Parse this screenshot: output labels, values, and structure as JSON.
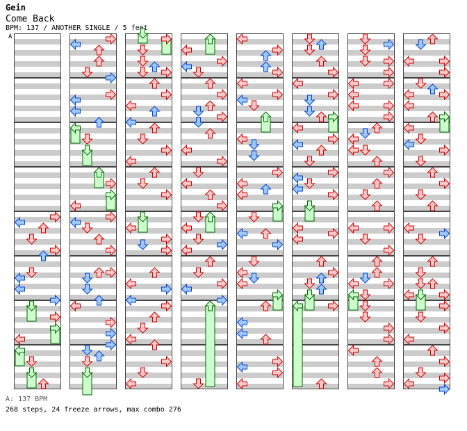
{
  "header": {
    "artist": "Gein",
    "title": "Come Back",
    "info": "BPM: 137 / ANOTHER SINGLE / 5 feet"
  },
  "segment_label": "A",
  "footer": {
    "bpm_line": "A: 137 BPM",
    "stats_line": "268 steps, 24 freeze arrows, max combo 276"
  },
  "colors": {
    "stripe": "#cccccc",
    "quarter_fill": "#ffc8c8",
    "quarter_stroke": "#cc0000",
    "eighth_fill": "#a0c8ff",
    "eighth_stroke": "#0044cc",
    "freeze_fill": "#ccffcc",
    "freeze_stroke": "#006600"
  },
  "chart_data": {
    "type": "step-chart",
    "columns": 8,
    "measures_per_column": 8,
    "lanes": [
      "left",
      "down",
      "up",
      "right"
    ],
    "note_types": {
      "q": "quarter",
      "e": "eighth",
      "f": "freeze"
    }
  }
}
